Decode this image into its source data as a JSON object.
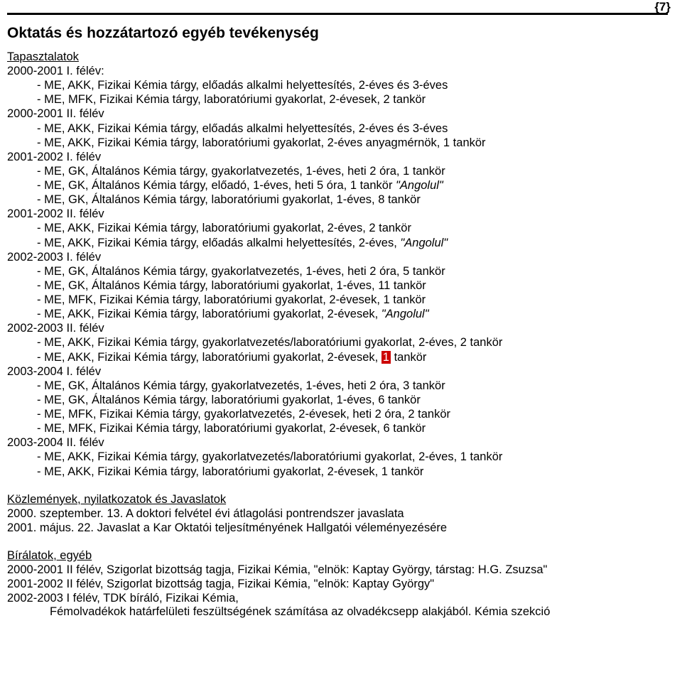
{
  "pageNumber": "{7}",
  "title": "Oktatás és hozzátartozó egyéb tevékenység",
  "s1_header": "Tapasztalatok",
  "blocks": [
    {
      "header": "2000-2001 I. félév:",
      "items": [
        "- ME, AKK, Fizikai Kémia tárgy, előadás alkalmi helyettesítés, 2-éves és 3-éves",
        "- ME, MFK, Fizikai Kémia tárgy, laboratóriumi gyakorlat, 2-évesek, 2 tankör"
      ]
    },
    {
      "header": "2000-2001 II. félév",
      "items": [
        "- ME, AKK, Fizikai Kémia tárgy, előadás alkalmi helyettesítés, 2-éves és 3-éves",
        "- ME, AKK, Fizikai Kémia tárgy, laboratóriumi gyakorlat, 2-éves anyagmérnök, 1 tankör"
      ]
    },
    {
      "header": "2001-2002 I. félév",
      "items": [
        "- ME, GK, Általános Kémia tárgy, gyakorlatvezetés, 1-éves, heti 2 óra, 1 tankör",
        {
          "pre": "- ME, GK, Általános Kémia tárgy, előadó, 1-éves, heti 5 óra, 1 tankör ",
          "ital": "\"Angolul\""
        },
        "- ME, GK, Általános Kémia tárgy, laboratóriumi gyakorlat, 1-éves, 8 tankör"
      ]
    },
    {
      "header": "2001-2002 II. félév",
      "items": [
        "- ME, AKK, Fizikai Kémia tárgy, laboratóriumi gyakorlat, 2-éves, 2 tankör",
        {
          "pre": "- ME, AKK, Fizikai Kémia tárgy, előadás alkalmi helyettesítés, 2-éves, ",
          "ital": "\"Angolul\""
        }
      ]
    },
    {
      "header": "2002-2003 I. félév",
      "items": [
        "- ME, GK, Általános Kémia tárgy, gyakorlatvezetés, 1-éves, heti 2 óra, 5 tankör",
        "- ME, GK, Általános Kémia tárgy, laboratóriumi gyakorlat, 1-éves, 11 tankör",
        "- ME, MFK, Fizikai Kémia tárgy, laboratóriumi gyakorlat, 2-évesek, 1 tankör",
        {
          "pre": "- ME, AKK, Fizikai Kémia tárgy, laboratóriumi gyakorlat, 2-évesek, ",
          "ital": "\"Angolul\""
        }
      ]
    },
    {
      "header": "2002-2003 II. félév",
      "items": [
        "- ME, AKK, Fizikai Kémia tárgy, gyakorlatvezetés/laboratóriumi gyakorlat, 2-éves, 2 tankör",
        {
          "pre": "- ME, AKK, Fizikai Kémia tárgy, laboratóriumi gyakorlat, 2-évesek, ",
          "red": "1",
          "post": " tankör"
        }
      ]
    },
    {
      "header": "2003-2004 I. félév",
      "items": [
        "- ME, GK, Általános Kémia tárgy, gyakorlatvezetés, 1-éves, heti 2 óra, 3 tankör",
        "- ME, GK, Általános Kémia tárgy, laboratóriumi gyakorlat, 1-éves, 6 tankör",
        "- ME, MFK, Fizikai Kémia tárgy, gyakorlatvezetés, 2-évesek, heti 2 óra, 2 tankör",
        "- ME, MFK, Fizikai Kémia tárgy, laboratóriumi gyakorlat, 2-évesek, 6 tankör"
      ]
    },
    {
      "header": "2003-2004 II. félév",
      "items": [
        "- ME, AKK, Fizikai Kémia tárgy, gyakorlatvezetés/laboratóriumi gyakorlat, 2-éves, 1 tankör",
        "- ME, AKK, Fizikai Kémia tárgy, laboratóriumi gyakorlat, 2-évesek, 1 tankör"
      ]
    }
  ],
  "s2_header": "Közlemények, nyilatkozatok és Javaslatok",
  "s2_lines": [
    "2000. szeptember. 13. A doktori felvétel évi átlagolási pontrendszer javaslata",
    "2001. május. 22. Javaslat a Kar Oktatói teljesítményének Hallgatói véleményezésére"
  ],
  "s3_header": "Bírálatok, egyéb",
  "s3_lines": [
    "2000-2001 II félév, Szigorlat bizottság tagja, Fizikai Kémia, \"elnök: Kaptay György, társtag: H.G. Zsuzsa\"",
    "2001-2002 II félév, Szigorlat bizottság tagja, Fizikai Kémia, \"elnök: Kaptay György\"",
    "2002-2003 I félév, TDK bíráló, Fizikai Kémia,"
  ],
  "footline": "Fémolvadékok határfelületi feszültségének számítása az olvadékcsepp alakjából. Kémia szekció"
}
